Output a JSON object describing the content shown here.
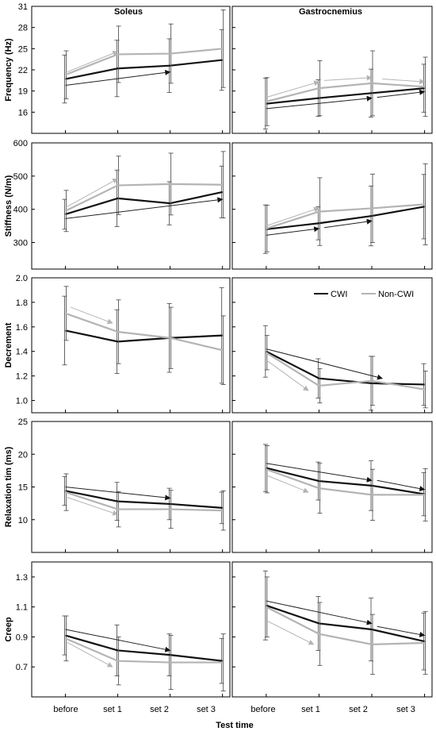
{
  "figure": {
    "columns": [
      "Soleus",
      "Gastrocnemius"
    ],
    "x_axis_title": "Test time",
    "categories": [
      "before",
      "set 1",
      "set 2",
      "set 3"
    ],
    "legend": {
      "placement": "inside-top-right of Decrement / Gastrocnemius panel",
      "entries": [
        "CWI",
        "Non-CWI"
      ]
    },
    "colors": {
      "CWI": "#111111",
      "Non-CWI": "#b4b4b4",
      "axis": "#000000"
    }
  },
  "chart_data": [
    {
      "type": "line",
      "title": "Soleus",
      "ylabel": "Frequency (Hz)",
      "xlabel": "",
      "ylim": [
        13,
        31
      ],
      "yticks": [
        16,
        19,
        22,
        25,
        28,
        31
      ],
      "ytick_labels": [
        "16",
        "19",
        "22",
        "25",
        "28",
        "31"
      ],
      "categories": [
        "before",
        "set 1",
        "set 2",
        "set 3"
      ],
      "series": [
        {
          "name": "CWI",
          "values": [
            20.7,
            22.2,
            22.6,
            23.4
          ],
          "error": [
            3.4,
            4.0,
            3.8,
            4.3
          ]
        },
        {
          "name": "Non-CWI",
          "values": [
            21.3,
            24.2,
            24.3,
            25.0
          ],
          "error": [
            3.4,
            4.0,
            4.2,
            5.5
          ]
        }
      ],
      "arrows": [
        {
          "series": "CWI",
          "from": [
            0,
            19.8
          ],
          "to": [
            2,
            21.7
          ]
        },
        {
          "series": "Non-CWI",
          "from": [
            0,
            21.6
          ],
          "to": [
            1,
            24.6
          ]
        }
      ]
    },
    {
      "type": "line",
      "title": "Gastrocnemius",
      "ylabel": "",
      "xlabel": "",
      "ylim": [
        13,
        31
      ],
      "yticks": [
        16,
        19,
        22,
        25,
        28,
        31
      ],
      "ytick_labels": [
        "",
        "",
        "",
        "",
        "",
        ""
      ],
      "categories": [
        "before",
        "set 1",
        "set 2",
        "set 3"
      ],
      "series": [
        {
          "name": "CWI",
          "values": [
            17.2,
            18.0,
            18.7,
            19.4
          ],
          "error": [
            3.6,
            2.6,
            3.4,
            3.4
          ]
        },
        {
          "name": "Non-CWI",
          "values": [
            17.5,
            19.4,
            20.1,
            19.6
          ],
          "error": [
            3.4,
            3.9,
            4.6,
            4.2
          ]
        }
      ],
      "arrows": [
        {
          "series": "CWI",
          "from": [
            0,
            16.5
          ],
          "to": [
            2,
            18.0
          ]
        },
        {
          "series": "CWI",
          "from": [
            2.1,
            18.1
          ],
          "to": [
            3,
            18.9
          ]
        },
        {
          "series": "Non-CWI",
          "from": [
            0,
            18.1
          ],
          "to": [
            1,
            20.3
          ]
        },
        {
          "series": "Non-CWI",
          "from": [
            1.1,
            20.5
          ],
          "to": [
            2,
            20.9
          ]
        },
        {
          "series": "Non-CWI",
          "from": [
            2.2,
            20.7
          ],
          "to": [
            3,
            20.3
          ]
        }
      ]
    },
    {
      "type": "line",
      "title": "",
      "ylabel": "Stiffness (N/m)",
      "xlabel": "",
      "ylim": [
        220,
        600
      ],
      "yticks": [
        300,
        400,
        500,
        600
      ],
      "ytick_labels": [
        "300",
        "400",
        "500",
        "600"
      ],
      "categories": [
        "before",
        "set 1",
        "set 2",
        "set 3"
      ],
      "series": [
        {
          "name": "CWI",
          "values": [
            385,
            433,
            418,
            452
          ],
          "error": [
            45,
            85,
            65,
            78
          ]
        },
        {
          "name": "Non-CWI",
          "values": [
            395,
            472,
            476,
            474
          ],
          "error": [
            62,
            88,
            93,
            100
          ]
        }
      ],
      "arrows": [
        {
          "series": "CWI",
          "from": [
            0,
            372
          ],
          "to": [
            3,
            430
          ]
        },
        {
          "series": "Non-CWI",
          "from": [
            0,
            405
          ],
          "to": [
            1,
            492
          ]
        }
      ]
    },
    {
      "type": "line",
      "title": "",
      "ylabel": "",
      "xlabel": "",
      "ylim": [
        220,
        600
      ],
      "yticks": [
        300,
        400,
        500,
        600
      ],
      "ytick_labels": [
        "",
        "",
        "",
        ""
      ],
      "categories": [
        "before",
        "set 1",
        "set 2",
        "set 3"
      ],
      "series": [
        {
          "name": "CWI",
          "values": [
            340,
            358,
            380,
            408
          ],
          "error": [
            73,
            50,
            90,
            97
          ]
        },
        {
          "name": "Non-CWI",
          "values": [
            342,
            393,
            403,
            415
          ],
          "error": [
            70,
            102,
            103,
            122
          ]
        }
      ],
      "arrows": [
        {
          "series": "CWI",
          "from": [
            0,
            322
          ],
          "to": [
            1,
            342
          ]
        },
        {
          "series": "CWI",
          "from": [
            1.1,
            345
          ],
          "to": [
            2,
            365
          ]
        },
        {
          "series": "Non-CWI",
          "from": [
            0,
            350
          ],
          "to": [
            1,
            404
          ]
        }
      ]
    },
    {
      "type": "line",
      "title": "",
      "ylabel": "Decrement",
      "xlabel": "",
      "ylim": [
        0.9,
        2.0
      ],
      "yticks": [
        1.0,
        1.2,
        1.4,
        1.6,
        1.8,
        2.0
      ],
      "ytick_labels": [
        "1.0",
        "1.2",
        "1.4",
        "1.6",
        "1.8",
        "2.0"
      ],
      "categories": [
        "before",
        "set 1",
        "set 2",
        "set 3"
      ],
      "series": [
        {
          "name": "CWI",
          "values": [
            1.57,
            1.48,
            1.51,
            1.53
          ],
          "error": [
            0.28,
            0.26,
            0.28,
            0.39
          ]
        },
        {
          "name": "Non-CWI",
          "values": [
            1.71,
            1.56,
            1.51,
            1.41
          ],
          "error": [
            0.22,
            0.26,
            0.25,
            0.28
          ]
        }
      ],
      "arrows": [
        {
          "series": "Non-CWI",
          "from": [
            0.1,
            1.76
          ],
          "to": [
            0.9,
            1.63
          ]
        }
      ]
    },
    {
      "type": "line",
      "title": "",
      "ylabel": "",
      "xlabel": "",
      "ylim": [
        0.9,
        2.0
      ],
      "yticks": [
        1.0,
        1.2,
        1.4,
        1.6,
        1.8,
        2.0
      ],
      "ytick_labels": [
        "",
        "",
        "",
        "",
        "",
        ""
      ],
      "categories": [
        "before",
        "set 1",
        "set 2",
        "set 3"
      ],
      "series": [
        {
          "name": "CWI",
          "values": [
            1.4,
            1.18,
            1.14,
            1.13
          ],
          "error": [
            0.21,
            0.16,
            0.22,
            0.17
          ]
        },
        {
          "name": "Non-CWI",
          "values": [
            1.39,
            1.12,
            1.16,
            1.09
          ],
          "error": [
            0.14,
            0.14,
            0.2,
            0.15
          ]
        }
      ],
      "arrows": [
        {
          "series": "CWI",
          "from": [
            0,
            1.42
          ],
          "to": [
            2.2,
            1.18
          ]
        },
        {
          "series": "Non-CWI",
          "from": [
            0,
            1.33
          ],
          "to": [
            0.8,
            1.08
          ]
        }
      ]
    },
    {
      "type": "line",
      "title": "",
      "ylabel": "Relaxation tim (ms)",
      "xlabel": "",
      "ylim": [
        5,
        25
      ],
      "yticks": [
        10,
        15,
        20,
        25
      ],
      "ytick_labels": [
        "10",
        "15",
        "20",
        "25"
      ],
      "categories": [
        "before",
        "set 1",
        "set 2",
        "set 3"
      ],
      "series": [
        {
          "name": "CWI",
          "values": [
            14.4,
            12.8,
            12.4,
            11.8
          ],
          "error": [
            2.2,
            2.9,
            2.4,
            2.4
          ]
        },
        {
          "name": "Non-CWI",
          "values": [
            14.2,
            11.6,
            11.6,
            11.4
          ],
          "error": [
            2.8,
            2.7,
            2.9,
            3.0
          ]
        }
      ],
      "arrows": [
        {
          "series": "CWI",
          "from": [
            0,
            15.0
          ],
          "to": [
            2,
            13.3
          ]
        },
        {
          "series": "Non-CWI",
          "from": [
            0,
            13.5
          ],
          "to": [
            1,
            10.8
          ]
        }
      ]
    },
    {
      "type": "line",
      "title": "",
      "ylabel": "",
      "xlabel": "",
      "ylim": [
        5,
        25
      ],
      "yticks": [
        10,
        15,
        20,
        25
      ],
      "ytick_labels": [
        "",
        "",
        "",
        ""
      ],
      "categories": [
        "before",
        "set 1",
        "set 2",
        "set 3"
      ],
      "series": [
        {
          "name": "CWI",
          "values": [
            17.9,
            15.9,
            15.2,
            13.9
          ],
          "error": [
            3.6,
            2.9,
            3.8,
            3.3
          ]
        },
        {
          "name": "Non-CWI",
          "values": [
            17.7,
            14.8,
            13.8,
            13.8
          ],
          "error": [
            3.6,
            3.8,
            3.9,
            4.0
          ]
        }
      ],
      "arrows": [
        {
          "series": "CWI",
          "from": [
            0,
            18.6
          ],
          "to": [
            2,
            16.0
          ]
        },
        {
          "series": "CWI",
          "from": [
            2.1,
            16.0
          ],
          "to": [
            3,
            14.6
          ]
        },
        {
          "series": "Non-CWI",
          "from": [
            0,
            16.8
          ],
          "to": [
            0.8,
            14.2
          ]
        }
      ]
    },
    {
      "type": "line",
      "title": "",
      "ylabel": "Creep",
      "xlabel": "",
      "ylim": [
        0.5,
        1.4
      ],
      "yticks": [
        0.7,
        0.9,
        1.1,
        1.3
      ],
      "ytick_labels": [
        "0.7",
        "0.9",
        "1.1",
        "1.3"
      ],
      "categories": [
        "before",
        "set 1",
        "set 2",
        "set 3"
      ],
      "series": [
        {
          "name": "CWI",
          "values": [
            0.91,
            0.81,
            0.78,
            0.74
          ],
          "error": [
            0.13,
            0.17,
            0.14,
            0.15
          ]
        },
        {
          "name": "Non-CWI",
          "values": [
            0.89,
            0.74,
            0.73,
            0.73
          ],
          "error": [
            0.15,
            0.16,
            0.18,
            0.19
          ]
        }
      ],
      "arrows": [
        {
          "series": "CWI",
          "from": [
            0,
            0.95
          ],
          "to": [
            2,
            0.81
          ]
        },
        {
          "series": "Non-CWI",
          "from": [
            0,
            0.87
          ],
          "to": [
            0.9,
            0.7
          ]
        }
      ]
    },
    {
      "type": "line",
      "title": "",
      "ylabel": "",
      "xlabel": "",
      "ylim": [
        0.5,
        1.4
      ],
      "yticks": [
        0.7,
        0.9,
        1.1,
        1.3
      ],
      "ytick_labels": [
        "",
        "",
        "",
        ""
      ],
      "categories": [
        "before",
        "set 1",
        "set 2",
        "set 3"
      ],
      "series": [
        {
          "name": "CWI",
          "values": [
            1.11,
            0.99,
            0.95,
            0.87
          ],
          "error": [
            0.23,
            0.18,
            0.21,
            0.19
          ]
        },
        {
          "name": "Non-CWI",
          "values": [
            1.1,
            0.92,
            0.85,
            0.86
          ],
          "error": [
            0.2,
            0.21,
            0.2,
            0.21
          ]
        }
      ],
      "arrows": [
        {
          "series": "CWI",
          "from": [
            0,
            1.14
          ],
          "to": [
            2,
            0.99
          ]
        },
        {
          "series": "CWI",
          "from": [
            2.1,
            0.97
          ],
          "to": [
            3,
            0.91
          ]
        },
        {
          "series": "Non-CWI",
          "from": [
            0,
            1.01
          ],
          "to": [
            0.9,
            0.85
          ]
        }
      ]
    }
  ]
}
